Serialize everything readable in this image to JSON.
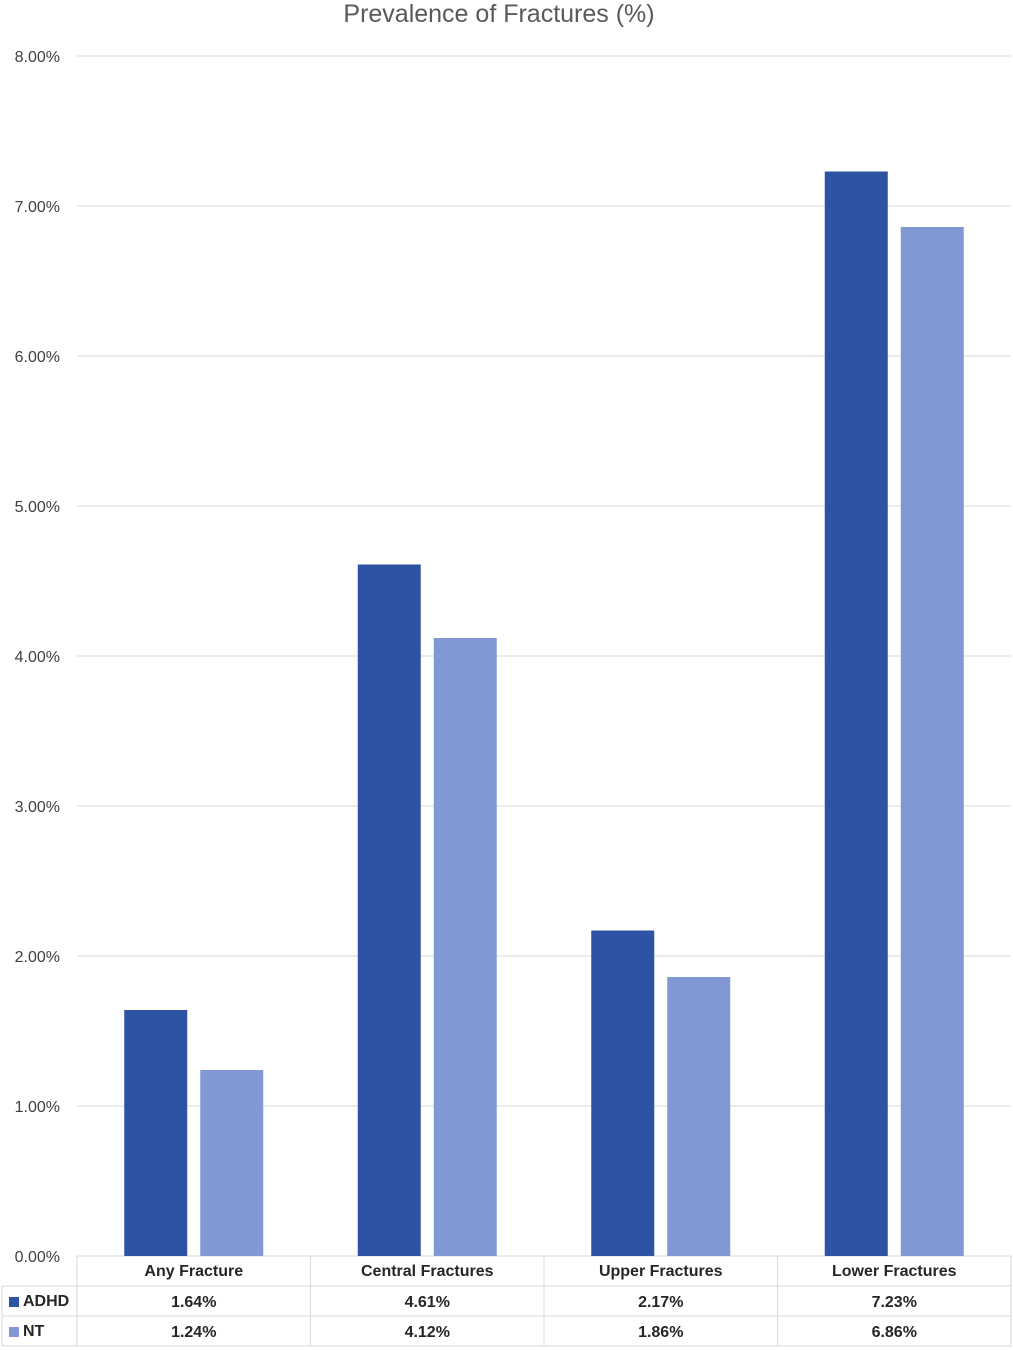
{
  "chart_data": {
    "type": "bar",
    "title": "Prevalence of Fractures (%)",
    "categories": [
      "Any Fracture",
      "Central Fractures",
      "Upper Fractures",
      "Lower Fractures"
    ],
    "series": [
      {
        "name": "ADHD",
        "values": [
          1.64,
          4.61,
          2.17,
          7.23
        ],
        "labels": [
          "1.64%",
          "4.61%",
          "2.17%",
          "7.23%"
        ],
        "color": "#2e53a3"
      },
      {
        "name": "NT",
        "values": [
          1.24,
          4.12,
          1.86,
          6.86
        ],
        "labels": [
          "1.24%",
          "4.12%",
          "1.86%",
          "6.86%"
        ],
        "color": "#8198d3"
      }
    ],
    "ylim": [
      0,
      8
    ],
    "yticks": [
      "0.00%",
      "1.00%",
      "2.00%",
      "3.00%",
      "4.00%",
      "5.00%",
      "6.00%",
      "7.00%",
      "8.00%"
    ],
    "grid": true,
    "legend": "data table below chart",
    "gridline_color": "#d9d9d9"
  }
}
